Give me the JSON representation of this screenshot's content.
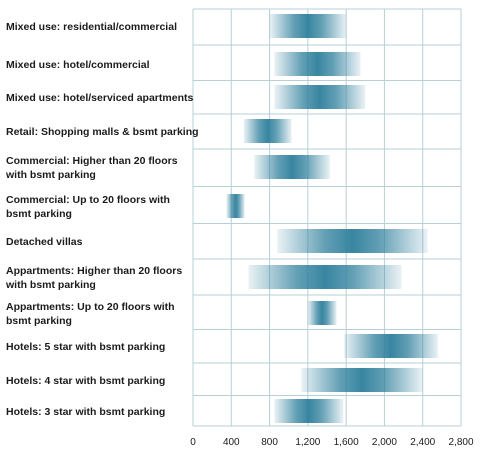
{
  "chart_data": {
    "type": "bar",
    "subtype": "floating-range",
    "orientation": "horizontal",
    "title": "",
    "xlabel": "",
    "ylabel": "",
    "xlim": [
      0,
      2800
    ],
    "x_ticks": [
      0,
      400,
      800,
      1200,
      1600,
      2000,
      2400,
      2800
    ],
    "x_tick_labels": [
      "0",
      "400",
      "800",
      "1,200",
      "1,600",
      "2,000",
      "2,400",
      "2,800"
    ],
    "grid": true,
    "bar_color": "#2e7f9c",
    "grid_color": "#b8cfd8",
    "categories": [
      [
        "Mixed use: residential/commercial"
      ],
      [
        "Mixed use: hotel/commercial"
      ],
      [
        "Mixed use: hotel/serviced apartments"
      ],
      [
        "Retail: Shopping malls & bsmt parking"
      ],
      [
        "Commercial: Higher than 20 floors",
        "with bsmt parking"
      ],
      [
        "Commercial: Up to 20 floors with",
        "bsmt parking"
      ],
      [
        "Detached villas"
      ],
      [
        "Appartments: Higher than 20 floors",
        "with bsmt parking"
      ],
      [
        "Appartments: Up to 20 floors with",
        "bsmt parking"
      ],
      [
        "Hotels: 5 star with bsmt parking"
      ],
      [
        "Hotels: 4 star with bsmt parking"
      ],
      [
        "Hotels: 3 star with bsmt parking"
      ]
    ],
    "ranges": [
      [
        800,
        1600
      ],
      [
        850,
        1750
      ],
      [
        850,
        1800
      ],
      [
        530,
        1030
      ],
      [
        640,
        1430
      ],
      [
        350,
        540
      ],
      [
        880,
        2450
      ],
      [
        580,
        2180
      ],
      [
        1200,
        1500
      ],
      [
        1580,
        2560
      ],
      [
        1130,
        2400
      ],
      [
        850,
        1570
      ]
    ]
  }
}
